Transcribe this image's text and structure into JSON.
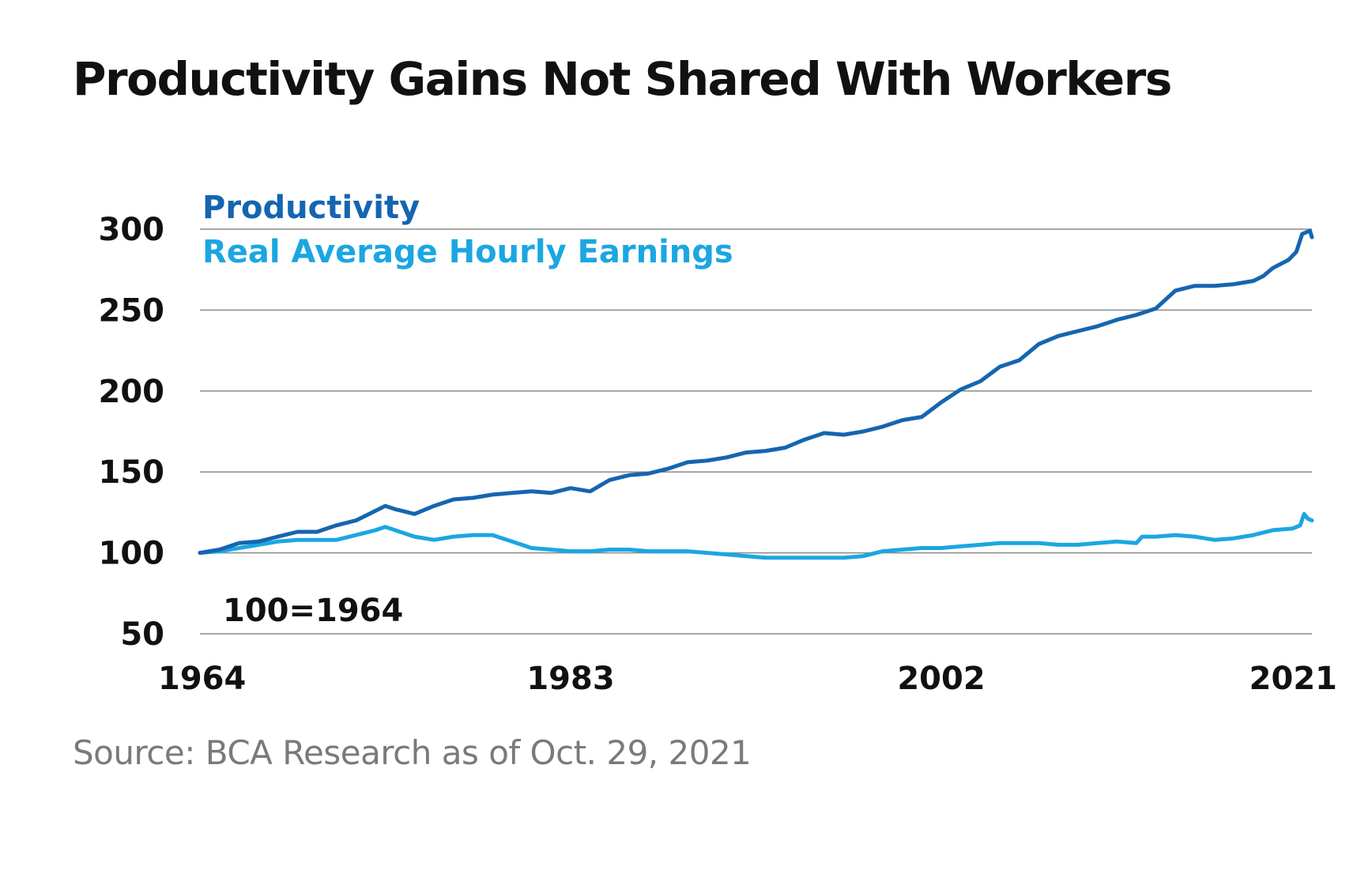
{
  "title": "Productivity Gains Not Shared With Workers",
  "source": "Source: BCA Research as of Oct. 29, 2021",
  "colors": {
    "productivity": "#1565b0",
    "earnings": "#1ba6e2",
    "grid": "#8a8a8a",
    "text": "#111111",
    "source": "#7a7a7a"
  },
  "chart_data": {
    "type": "line",
    "title": "Productivity Gains Not Shared With Workers",
    "note": "100=1964",
    "xlabel": "",
    "ylabel": "",
    "xlim": [
      1964,
      2021
    ],
    "ylim": [
      50,
      300
    ],
    "x_ticks": [
      1964,
      1983,
      2002,
      2021
    ],
    "y_ticks": [
      50,
      100,
      150,
      200,
      250,
      300
    ],
    "grid": true,
    "legend_position": "top-left",
    "series": [
      {
        "name": "Productivity",
        "points": [
          [
            1964,
            100
          ],
          [
            1965,
            102
          ],
          [
            1966,
            106
          ],
          [
            1967,
            107
          ],
          [
            1968,
            110
          ],
          [
            1969,
            113
          ],
          [
            1970,
            113
          ],
          [
            1971,
            117
          ],
          [
            1972,
            120
          ],
          [
            1973,
            126
          ],
          [
            1973.5,
            129
          ],
          [
            1974,
            127
          ],
          [
            1975,
            124
          ],
          [
            1976,
            129
          ],
          [
            1977,
            133
          ],
          [
            1978,
            134
          ],
          [
            1979,
            136
          ],
          [
            1980,
            137
          ],
          [
            1981,
            138
          ],
          [
            1982,
            137
          ],
          [
            1983,
            140
          ],
          [
            1984,
            138
          ],
          [
            1985,
            145
          ],
          [
            1986,
            148
          ],
          [
            1987,
            149
          ],
          [
            1988,
            152
          ],
          [
            1989,
            156
          ],
          [
            1990,
            157
          ],
          [
            1991,
            159
          ],
          [
            1992,
            162
          ],
          [
            1993,
            163
          ],
          [
            1994,
            165
          ],
          [
            1995,
            170
          ],
          [
            1996,
            174
          ],
          [
            1997,
            173
          ],
          [
            1998,
            175
          ],
          [
            1999,
            178
          ],
          [
            2000,
            182
          ],
          [
            2001,
            184
          ],
          [
            2002,
            193
          ],
          [
            2003,
            201
          ],
          [
            2004,
            206
          ],
          [
            2005,
            215
          ],
          [
            2006,
            219
          ],
          [
            2007,
            229
          ],
          [
            2008,
            234
          ],
          [
            2009,
            237
          ],
          [
            2010,
            240
          ],
          [
            2011,
            244
          ],
          [
            2012,
            247
          ],
          [
            2013,
            251
          ],
          [
            2014,
            262
          ],
          [
            2015,
            265
          ],
          [
            2016,
            265
          ],
          [
            2017,
            266
          ],
          [
            2018,
            268
          ],
          [
            2018.5,
            271
          ],
          [
            2019,
            276
          ],
          [
            2019.8,
            281
          ],
          [
            2020.2,
            286
          ],
          [
            2020.5,
            297
          ],
          [
            2020.9,
            299
          ],
          [
            2021,
            295
          ]
        ]
      },
      {
        "name": "Real Average Hourly Earnings",
        "points": [
          [
            1964,
            100
          ],
          [
            1965,
            101
          ],
          [
            1966,
            103
          ],
          [
            1967,
            105
          ],
          [
            1968,
            107
          ],
          [
            1969,
            108
          ],
          [
            1970,
            108
          ],
          [
            1971,
            108
          ],
          [
            1972,
            111
          ],
          [
            1973,
            114
          ],
          [
            1973.5,
            116
          ],
          [
            1974,
            114
          ],
          [
            1975,
            110
          ],
          [
            1976,
            108
          ],
          [
            1977,
            110
          ],
          [
            1978,
            111
          ],
          [
            1979,
            111
          ],
          [
            1980,
            107
          ],
          [
            1981,
            103
          ],
          [
            1982,
            102
          ],
          [
            1983,
            101
          ],
          [
            1984,
            101
          ],
          [
            1985,
            102
          ],
          [
            1986,
            102
          ],
          [
            1987,
            101
          ],
          [
            1988,
            101
          ],
          [
            1989,
            101
          ],
          [
            1990,
            100
          ],
          [
            1991,
            99
          ],
          [
            1992,
            98
          ],
          [
            1993,
            97
          ],
          [
            1994,
            97
          ],
          [
            1995,
            97
          ],
          [
            1996,
            97
          ],
          [
            1997,
            97
          ],
          [
            1998,
            98
          ],
          [
            1999,
            101
          ],
          [
            2000,
            102
          ],
          [
            2001,
            103
          ],
          [
            2002,
            103
          ],
          [
            2003,
            104
          ],
          [
            2004,
            105
          ],
          [
            2005,
            106
          ],
          [
            2006,
            106
          ],
          [
            2007,
            106
          ],
          [
            2008,
            105
          ],
          [
            2009,
            105
          ],
          [
            2010,
            106
          ],
          [
            2011,
            107
          ],
          [
            2012,
            106
          ],
          [
            2012.3,
            110
          ],
          [
            2013,
            110
          ],
          [
            2014,
            111
          ],
          [
            2015,
            110
          ],
          [
            2016,
            108
          ],
          [
            2017,
            109
          ],
          [
            2018,
            111
          ],
          [
            2019,
            114
          ],
          [
            2020,
            115
          ],
          [
            2020.4,
            117
          ],
          [
            2020.6,
            124
          ],
          [
            2020.8,
            121
          ],
          [
            2021,
            120
          ]
        ]
      }
    ]
  }
}
